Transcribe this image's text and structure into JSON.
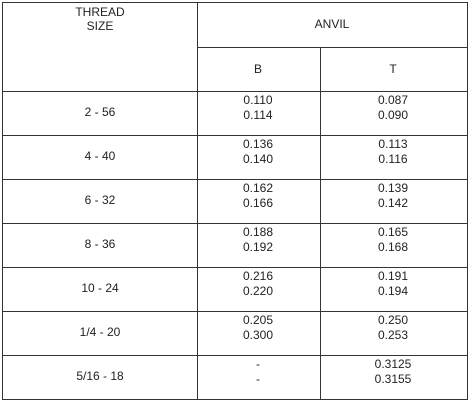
{
  "header": {
    "thread_size": [
      "THREAD",
      "SIZE"
    ],
    "anvil": "ANVIL",
    "b": "B",
    "t": "T"
  },
  "rows": [
    {
      "size": "2 - 56",
      "b": [
        "0.110",
        "0.114"
      ],
      "t": [
        "0.087",
        "0.090"
      ]
    },
    {
      "size": "4 - 40",
      "b": [
        "0.136",
        "0.140"
      ],
      "t": [
        "0.113",
        "0.116"
      ]
    },
    {
      "size": "6 - 32",
      "b": [
        "0.162",
        "0.166"
      ],
      "t": [
        "0.139",
        "0.142"
      ]
    },
    {
      "size": "8 - 36",
      "b": [
        "0.188",
        "0.192"
      ],
      "t": [
        "0.165",
        "0.168"
      ]
    },
    {
      "size": "10 - 24",
      "b": [
        "0.216",
        "0.220"
      ],
      "t": [
        "0.191",
        "0.194"
      ]
    },
    {
      "size": "1/4 - 20",
      "b": [
        "0.205",
        "0.300"
      ],
      "t": [
        "0.250",
        "0.253"
      ]
    },
    {
      "size": "5/16 - 18",
      "b": [
        "-",
        "-"
      ],
      "t": [
        "0.3125",
        "0.3155"
      ]
    }
  ]
}
